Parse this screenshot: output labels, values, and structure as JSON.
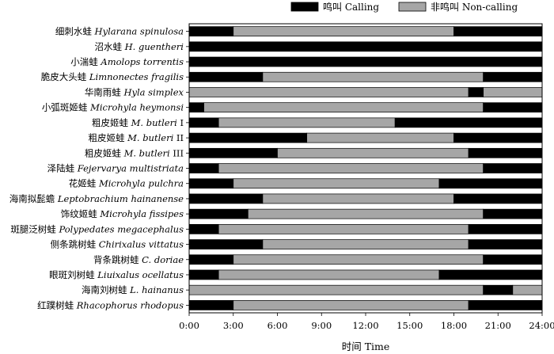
{
  "chart_data": {
    "type": "bar",
    "orientation": "horizontal",
    "stacked": true,
    "xlabel": "时间 Time",
    "xlim": [
      0,
      24
    ],
    "x_ticks": [
      "0:00",
      "3:00",
      "6:00",
      "9:00",
      "12:00",
      "15:00",
      "18:00",
      "21:00",
      "24:00"
    ],
    "legend": {
      "placement": "top-right",
      "items": [
        {
          "name": "鸣叫 Calling",
          "color": "#000000"
        },
        {
          "name": "非鸣叫 Non-calling",
          "color": "#a6a6a6"
        }
      ]
    },
    "categories": [
      {
        "cn": "细刺水蛙 ",
        "sci": "Hylarana spinulosa",
        "suffix": ""
      },
      {
        "cn": "沼水蛙 ",
        "sci": "H. guentheri",
        "suffix": ""
      },
      {
        "cn": "小湍蛙 ",
        "sci": "Amolops torrentis",
        "suffix": ""
      },
      {
        "cn": "脆皮大头蛙 ",
        "sci": "Limnonectes fragilis",
        "suffix": ""
      },
      {
        "cn": "华南雨蛙 ",
        "sci": "Hyla simplex",
        "suffix": ""
      },
      {
        "cn": "小弧斑姬蛙 ",
        "sci": "Microhyla heymonsi",
        "suffix": ""
      },
      {
        "cn": "粗皮姬蛙 ",
        "sci": "M. butleri",
        "suffix": " I"
      },
      {
        "cn": "粗皮姬蛙 ",
        "sci": "M. butleri",
        "suffix": " II"
      },
      {
        "cn": "粗皮姬蛙 ",
        "sci": "M. butleri",
        "suffix": " III"
      },
      {
        "cn": "泽陆蛙 ",
        "sci": "Fejervarya multistriata",
        "suffix": ""
      },
      {
        "cn": "花姬蛙 ",
        "sci": "Microhyla pulchra",
        "suffix": ""
      },
      {
        "cn": "海南拟髭蟾 ",
        "sci": "Leptobrachium hainanense",
        "suffix": ""
      },
      {
        "cn": "饰纹姬蛙 ",
        "sci": "Microhyla fissipes",
        "suffix": ""
      },
      {
        "cn": "斑腿泛树蛙 ",
        "sci": "Polypedates megacephalus",
        "suffix": ""
      },
      {
        "cn": "侧条跳树蛙 ",
        "sci": "Chirixalus vittatus",
        "suffix": ""
      },
      {
        "cn": "背条跳树蛙 ",
        "sci": "C. doriae",
        "suffix": ""
      },
      {
        "cn": "眼斑刘树蛙 ",
        "sci": "Liuixalus ocellatus",
        "suffix": ""
      },
      {
        "cn": "海南刘树蛙 ",
        "sci": "L. hainanus",
        "suffix": ""
      },
      {
        "cn": "红蹼树蛙 ",
        "sci": "Rhacophorus rhodopus",
        "suffix": ""
      }
    ],
    "segments": [
      [
        [
          "calling",
          0,
          3
        ],
        [
          "noncalling",
          3,
          18
        ],
        [
          "calling",
          18,
          24
        ]
      ],
      [
        [
          "calling",
          0,
          24
        ]
      ],
      [
        [
          "calling",
          0,
          24
        ]
      ],
      [
        [
          "calling",
          0,
          5
        ],
        [
          "noncalling",
          5,
          20
        ],
        [
          "calling",
          20,
          24
        ]
      ],
      [
        [
          "noncalling",
          0,
          19
        ],
        [
          "calling",
          19,
          20
        ],
        [
          "noncalling",
          20,
          24
        ]
      ],
      [
        [
          "calling",
          0,
          1
        ],
        [
          "noncalling",
          1,
          20
        ],
        [
          "calling",
          20,
          24
        ]
      ],
      [
        [
          "calling",
          0,
          2
        ],
        [
          "noncalling",
          2,
          14
        ],
        [
          "calling",
          14,
          24
        ]
      ],
      [
        [
          "calling",
          0,
          8
        ],
        [
          "noncalling",
          8,
          18
        ],
        [
          "calling",
          18,
          24
        ]
      ],
      [
        [
          "calling",
          0,
          6
        ],
        [
          "noncalling",
          6,
          19
        ],
        [
          "calling",
          19,
          24
        ]
      ],
      [
        [
          "calling",
          0,
          2
        ],
        [
          "noncalling",
          2,
          20
        ],
        [
          "calling",
          20,
          24
        ]
      ],
      [
        [
          "calling",
          0,
          3
        ],
        [
          "noncalling",
          3,
          17
        ],
        [
          "calling",
          17,
          24
        ]
      ],
      [
        [
          "calling",
          0,
          5
        ],
        [
          "noncalling",
          5,
          18
        ],
        [
          "calling",
          18,
          24
        ]
      ],
      [
        [
          "calling",
          0,
          4
        ],
        [
          "noncalling",
          4,
          20
        ],
        [
          "calling",
          20,
          24
        ]
      ],
      [
        [
          "calling",
          0,
          2
        ],
        [
          "noncalling",
          2,
          19
        ],
        [
          "calling",
          19,
          24
        ]
      ],
      [
        [
          "calling",
          0,
          5
        ],
        [
          "noncalling",
          5,
          19
        ],
        [
          "calling",
          19,
          24
        ]
      ],
      [
        [
          "calling",
          0,
          3
        ],
        [
          "noncalling",
          3,
          20
        ],
        [
          "calling",
          20,
          24
        ]
      ],
      [
        [
          "calling",
          0,
          2
        ],
        [
          "noncalling",
          2,
          17
        ],
        [
          "calling",
          17,
          24
        ]
      ],
      [
        [
          "noncalling",
          0,
          20
        ],
        [
          "calling",
          20,
          22
        ],
        [
          "noncalling",
          22,
          24
        ]
      ],
      [
        [
          "calling",
          0,
          3
        ],
        [
          "noncalling",
          3,
          19
        ],
        [
          "calling",
          19,
          24
        ]
      ]
    ],
    "colors": {
      "calling": "#000000",
      "noncalling": "#a6a6a6"
    }
  }
}
